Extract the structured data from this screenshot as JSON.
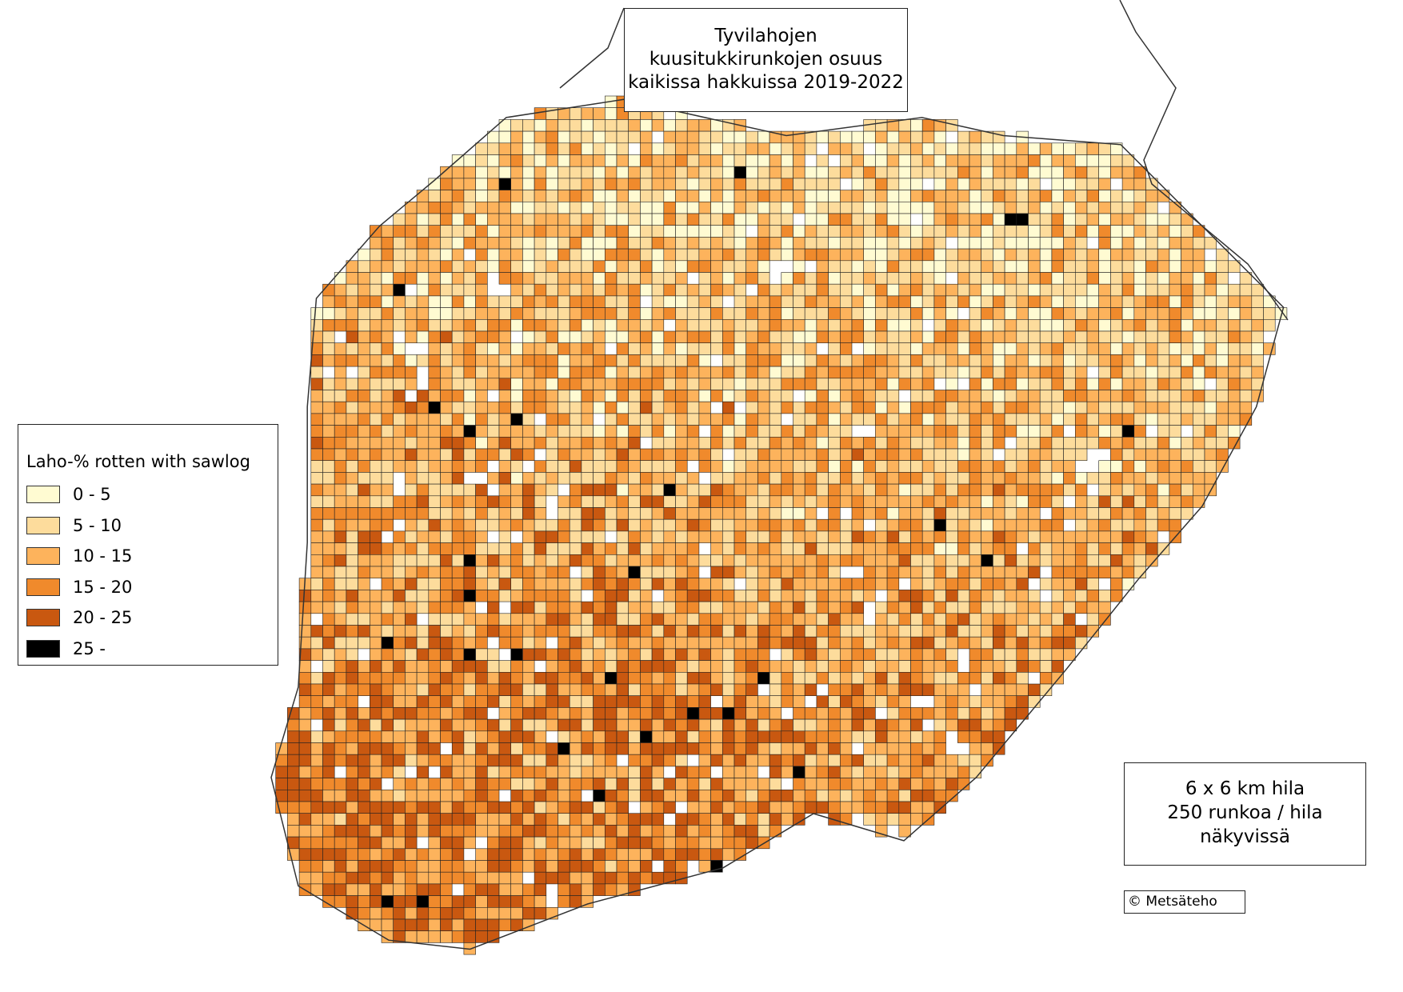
{
  "title": {
    "lines": [
      "Tyvilahojen",
      "kuusitukkirunkojen osuus",
      "kaikissa hakkuissa 2019-2022"
    ]
  },
  "legend": {
    "title": "Laho-% rotten with sawlog",
    "items": [
      {
        "label": "0 - 5",
        "color": "#fffbd2"
      },
      {
        "label": "5 - 10",
        "color": "#fddc9c"
      },
      {
        "label": "10 - 15",
        "color": "#fdb35c"
      },
      {
        "label": "15 - 20",
        "color": "#f08a2c"
      },
      {
        "label": "20 - 25",
        "color": "#c95810"
      },
      {
        "label": "25 -",
        "color": "#000000"
      }
    ]
  },
  "info_box": {
    "lines": [
      "6 x 6 km hila",
      "250 runkoa / hila",
      "näkyvissä"
    ]
  },
  "copyright": "© Metsäteho"
}
